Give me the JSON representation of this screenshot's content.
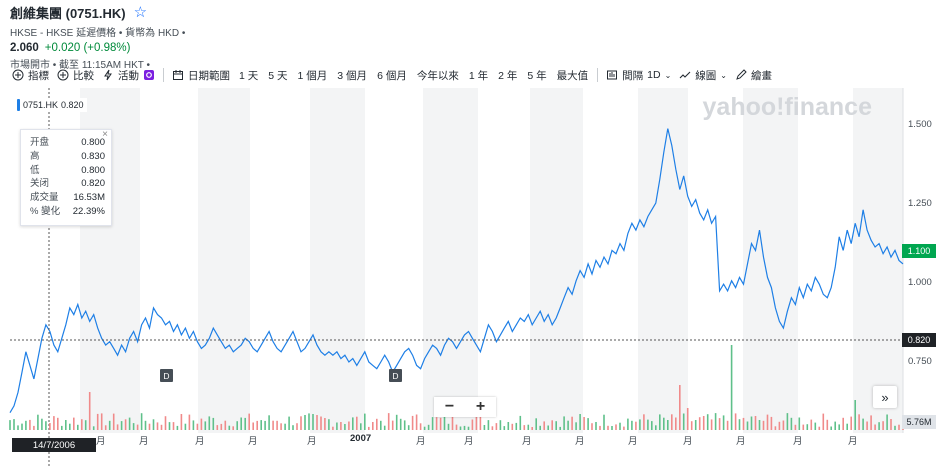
{
  "header": {
    "title": "創維集團 (0751.HK)",
    "subtitle": "HKSE - HKSE 延遲價格 • 貨幣為 HKD •",
    "price": "2.060",
    "change": "+0.020 (+0.98%)",
    "status": "市場開市 • 截至 11:15AM HKT •"
  },
  "toolbar": {
    "indicators": "指標",
    "compare": "比較",
    "events": "活動",
    "date_range": "日期範圍",
    "ranges": [
      "1 天",
      "5 天",
      "1 個月",
      "3 個月",
      "6 個月",
      "今年以來",
      "1 年",
      "2 年",
      "5 年",
      "最大值"
    ],
    "interval_label": "間隔",
    "interval_value": "1D",
    "chart_type": "線圖",
    "draw": "繪畫"
  },
  "tooltip": {
    "symbol": "0751.HK",
    "value": "0.820",
    "rows": [
      {
        "k": "开盘",
        "v": "0.800"
      },
      {
        "k": "高",
        "v": "0.830"
      },
      {
        "k": "低",
        "v": "0.800"
      },
      {
        "k": "关闭",
        "v": "0.820"
      },
      {
        "k": "成交量",
        "v": "16.53M"
      },
      {
        "k": "% 變化",
        "v": "22.39%"
      }
    ]
  },
  "watermark": "yahoo!finance",
  "tags": {
    "last_price": "1.100",
    "crosshair_price": "0.820",
    "volume": "5.76M",
    "crosshair_date": "14/7/2006"
  },
  "markers": {
    "dividend": "D"
  },
  "zoom": {
    "minus": "−",
    "plus": "+"
  },
  "more": "»",
  "chart_data": {
    "type": "line",
    "x_tick_labels": [
      "月",
      "月",
      "月",
      "月",
      "月",
      "2007",
      "月",
      "月",
      "月",
      "月",
      "月",
      "月",
      "月",
      "月",
      "月",
      "月"
    ],
    "y_ticks": [
      "1.500",
      "1.250",
      "1.000",
      "0.750"
    ],
    "ylim": [
      0.6,
      1.62
    ],
    "series": [
      {
        "values": [
          0.66,
          0.68,
          0.72,
          0.78,
          0.84,
          0.8,
          0.76,
          0.82,
          0.88,
          0.92,
          0.9,
          0.86,
          0.84,
          0.88,
          0.92,
          0.97,
          0.95,
          0.98,
          0.94,
          0.96,
          0.93,
          0.95,
          0.91,
          0.88,
          0.86,
          0.87,
          0.85,
          0.83,
          0.86,
          0.84,
          0.88,
          0.9,
          0.87,
          0.92,
          0.94,
          0.91,
          0.97,
          0.95,
          0.94,
          0.92,
          0.93,
          0.9,
          0.92,
          0.89,
          0.91,
          0.88,
          0.9,
          0.87,
          0.85,
          0.86,
          0.88,
          0.91,
          0.89,
          0.87,
          0.85,
          0.86,
          0.84,
          0.85,
          0.86,
          0.88,
          0.87,
          0.85,
          0.84,
          0.86,
          0.88,
          0.9,
          0.87,
          0.85,
          0.84,
          0.86,
          0.88,
          0.9,
          0.87,
          0.84,
          0.85,
          0.87,
          0.89,
          0.86,
          0.84,
          0.83,
          0.84,
          0.83,
          0.84,
          0.82,
          0.83,
          0.81,
          0.82,
          0.8,
          0.82,
          0.84,
          0.81,
          0.8,
          0.79,
          0.81,
          0.83,
          0.81,
          0.78,
          0.8,
          0.82,
          0.84,
          0.85,
          0.83,
          0.8,
          0.79,
          0.82,
          0.84,
          0.86,
          0.85,
          0.83,
          0.86,
          0.88,
          0.87,
          0.85,
          0.87,
          0.89,
          0.9,
          0.88,
          0.86,
          0.84,
          0.88,
          0.92,
          0.9,
          0.87,
          0.89,
          0.91,
          0.93,
          0.9,
          0.92,
          0.94,
          0.93,
          0.95,
          0.92,
          0.94,
          0.96,
          0.93,
          0.95,
          0.92,
          0.94,
          0.97,
          1.0,
          1.03,
          1.01,
          1.05,
          1.08,
          1.06,
          1.1,
          1.07,
          1.11,
          1.09,
          1.12,
          1.1,
          1.14,
          1.13,
          1.16,
          1.14,
          1.19,
          1.22,
          1.2,
          1.23,
          1.21,
          1.24,
          1.26,
          1.28,
          1.35,
          1.43,
          1.5,
          1.45,
          1.38,
          1.32,
          1.36,
          1.3,
          1.27,
          1.29,
          1.25,
          1.23,
          1.26,
          1.22,
          1.24,
          1.02,
          1.04,
          1.02,
          1.05,
          1.03,
          1.06,
          1.04,
          1.1,
          1.16,
          1.14,
          1.2,
          1.12,
          1.06,
          1.03,
          0.97,
          0.93,
          0.91,
          0.96,
          1.0,
          0.98,
          1.03,
          1.0,
          1.04,
          1.02,
          1.06,
          1.04,
          1.01,
          1.0,
          1.03,
          1.09,
          1.18,
          1.14,
          1.2,
          1.16,
          1.22,
          1.18,
          1.26,
          1.2,
          1.17,
          1.15,
          1.16,
          1.13,
          1.15,
          1.12,
          1.14,
          1.11,
          1.1
        ]
      }
    ],
    "volume_spikes": [
      "D",
      "D"
    ]
  }
}
